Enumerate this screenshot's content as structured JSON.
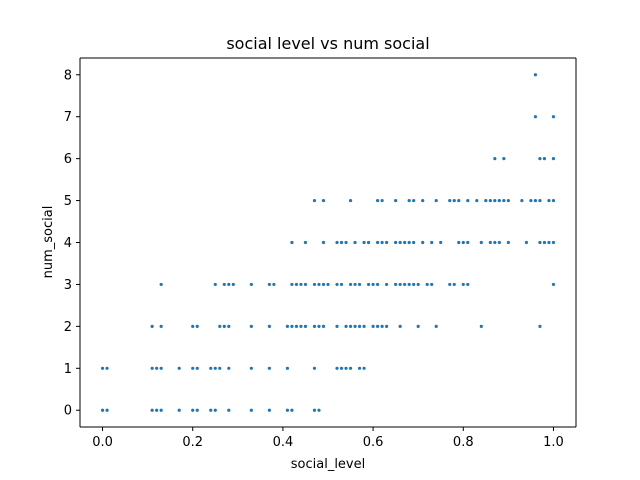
{
  "chart_data": {
    "type": "scatter",
    "title": "social level vs num social",
    "xlabel": "social_level",
    "ylabel": "num_social",
    "xlim": [
      -0.05,
      1.05
    ],
    "ylim": [
      -0.4,
      8.4
    ],
    "xticks": [
      0.0,
      0.2,
      0.4,
      0.6,
      0.8,
      1.0
    ],
    "xtick_labels": [
      "0.0",
      "0.2",
      "0.4",
      "0.6",
      "0.8",
      "1.0"
    ],
    "yticks": [
      0,
      1,
      2,
      3,
      4,
      5,
      6,
      7,
      8
    ],
    "ytick_labels": [
      "0",
      "1",
      "2",
      "3",
      "4",
      "5",
      "6",
      "7",
      "8"
    ],
    "grid": false,
    "marker_color": "#1f77b4",
    "series": [
      {
        "x": [
          0.0,
          0.01,
          0.11,
          0.12,
          0.13,
          0.17,
          0.2,
          0.21,
          0.24,
          0.25,
          0.28,
          0.33,
          0.37,
          0.41,
          0.42,
          0.47,
          0.48,
          0.0,
          0.01,
          0.11,
          0.12,
          0.13,
          0.17,
          0.2,
          0.21,
          0.24,
          0.25,
          0.26,
          0.28,
          0.33,
          0.37,
          0.41,
          0.47,
          0.52,
          0.53,
          0.54,
          0.55,
          0.57,
          0.58,
          0.11,
          0.13,
          0.2,
          0.21,
          0.26,
          0.27,
          0.28,
          0.33,
          0.37,
          0.41,
          0.42,
          0.43,
          0.44,
          0.45,
          0.47,
          0.48,
          0.49,
          0.52,
          0.54,
          0.55,
          0.56,
          0.57,
          0.58,
          0.6,
          0.61,
          0.62,
          0.63,
          0.66,
          0.7,
          0.74,
          0.84,
          0.97,
          0.13,
          0.25,
          0.27,
          0.28,
          0.29,
          0.33,
          0.37,
          0.38,
          0.42,
          0.43,
          0.44,
          0.45,
          0.47,
          0.48,
          0.49,
          0.5,
          0.52,
          0.53,
          0.55,
          0.56,
          0.57,
          0.59,
          0.6,
          0.61,
          0.63,
          0.65,
          0.66,
          0.67,
          0.68,
          0.69,
          0.7,
          0.72,
          0.73,
          0.77,
          0.78,
          0.8,
          0.81,
          1.0,
          0.42,
          0.45,
          0.49,
          0.52,
          0.53,
          0.54,
          0.56,
          0.58,
          0.59,
          0.61,
          0.62,
          0.63,
          0.65,
          0.66,
          0.67,
          0.68,
          0.69,
          0.71,
          0.73,
          0.75,
          0.79,
          0.8,
          0.81,
          0.84,
          0.86,
          0.87,
          0.88,
          0.9,
          0.94,
          0.97,
          0.98,
          0.99,
          1.0,
          0.47,
          0.49,
          0.55,
          0.61,
          0.62,
          0.65,
          0.68,
          0.69,
          0.71,
          0.74,
          0.77,
          0.78,
          0.79,
          0.81,
          0.83,
          0.85,
          0.86,
          0.87,
          0.88,
          0.89,
          0.9,
          0.93,
          0.95,
          0.96,
          0.97,
          0.99,
          1.0,
          0.87,
          0.89,
          0.97,
          0.98,
          1.0,
          0.96,
          1.0,
          0.96
        ],
        "y": [
          0,
          0,
          0,
          0,
          0,
          0,
          0,
          0,
          0,
          0,
          0,
          0,
          0,
          0,
          0,
          0,
          0,
          1,
          1,
          1,
          1,
          1,
          1,
          1,
          1,
          1,
          1,
          1,
          1,
          1,
          1,
          1,
          1,
          1,
          1,
          1,
          1,
          1,
          1,
          2,
          2,
          2,
          2,
          2,
          2,
          2,
          2,
          2,
          2,
          2,
          2,
          2,
          2,
          2,
          2,
          2,
          2,
          2,
          2,
          2,
          2,
          2,
          2,
          2,
          2,
          2,
          2,
          2,
          2,
          2,
          2,
          3,
          3,
          3,
          3,
          3,
          3,
          3,
          3,
          3,
          3,
          3,
          3,
          3,
          3,
          3,
          3,
          3,
          3,
          3,
          3,
          3,
          3,
          3,
          3,
          3,
          3,
          3,
          3,
          3,
          3,
          3,
          3,
          3,
          3,
          3,
          3,
          3,
          3,
          4,
          4,
          4,
          4,
          4,
          4,
          4,
          4,
          4,
          4,
          4,
          4,
          4,
          4,
          4,
          4,
          4,
          4,
          4,
          4,
          4,
          4,
          4,
          4,
          4,
          4,
          4,
          4,
          4,
          4,
          4,
          4,
          4,
          5,
          5,
          5,
          5,
          5,
          5,
          5,
          5,
          5,
          5,
          5,
          5,
          5,
          5,
          5,
          5,
          5,
          5,
          5,
          5,
          5,
          5,
          5,
          5,
          5,
          5,
          5,
          6,
          6,
          6,
          6,
          6,
          7,
          7,
          8
        ]
      }
    ]
  }
}
